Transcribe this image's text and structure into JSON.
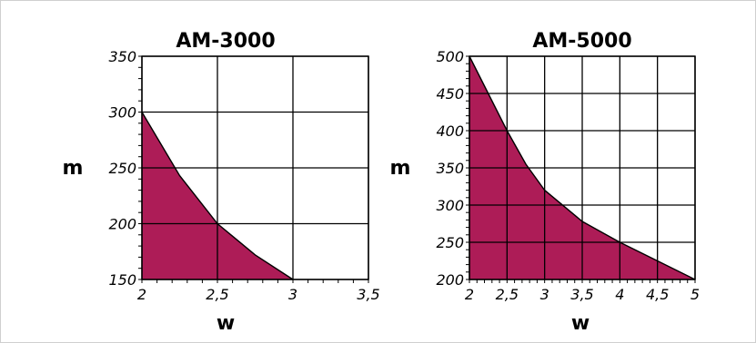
{
  "chart_data": [
    {
      "type": "area",
      "title": "AM-3000",
      "xlabel": "w",
      "ylabel": "m",
      "xlim": [
        2,
        3.5
      ],
      "ylim": [
        150,
        350
      ],
      "x_ticks": [
        "2",
        "2,5",
        "3",
        "3,5"
      ],
      "y_ticks": [
        "150",
        "200",
        "250",
        "300",
        "350"
      ],
      "grid": true,
      "fill_color": "#ad1c57",
      "series": [
        {
          "points": [
            [
              2,
              300
            ],
            [
              2.25,
              243
            ],
            [
              2.5,
              200
            ],
            [
              2.75,
              172
            ],
            [
              3,
              150
            ]
          ]
        }
      ]
    },
    {
      "type": "area",
      "title": "AM-5000",
      "xlabel": "w",
      "ylabel": "m",
      "xlim": [
        2,
        5
      ],
      "ylim": [
        200,
        500
      ],
      "x_ticks": [
        "2",
        "2,5",
        "3",
        "3,5",
        "4",
        "4,5",
        "5"
      ],
      "y_ticks": [
        "200",
        "250",
        "300",
        "350",
        "400",
        "450",
        "500"
      ],
      "grid": true,
      "fill_color": "#ad1c57",
      "series": [
        {
          "points": [
            [
              2,
              500
            ],
            [
              2.25,
              450
            ],
            [
              2.5,
              400
            ],
            [
              2.75,
              355
            ],
            [
              3,
              320
            ],
            [
              3.5,
              278
            ],
            [
              4,
              250
            ],
            [
              4.5,
              225
            ],
            [
              5,
              200
            ]
          ]
        }
      ]
    }
  ]
}
